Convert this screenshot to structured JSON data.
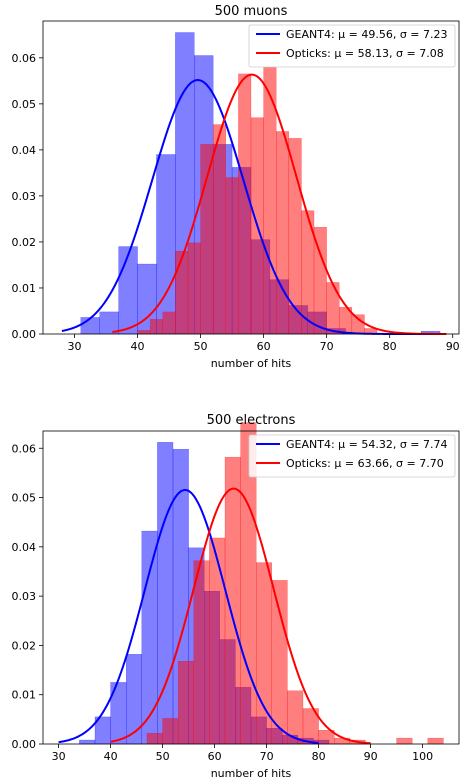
{
  "chart_data": [
    {
      "type": "histogram",
      "title": "500 muons",
      "xlabel": "number of hits",
      "ylabel": "",
      "xlim": [
        25,
        91
      ],
      "ylim": [
        0,
        0.068
      ],
      "xticks": [
        "30",
        "40",
        "50",
        "60",
        "70",
        "80",
        "90"
      ],
      "yticks": [
        "0.00",
        "0.01",
        "0.02",
        "0.03",
        "0.04",
        "0.05",
        "0.06"
      ],
      "xtick_values": [
        30,
        40,
        50,
        60,
        70,
        80,
        90
      ],
      "ytick_values": [
        0,
        0.01,
        0.02,
        0.03,
        0.04,
        0.05,
        0.06
      ],
      "legend_position": "upper right",
      "series": [
        {
          "name": "GEANT4: μ = 49.56, σ = 7.23",
          "color": "#0000ff",
          "mean": 49.56,
          "sigma": 7.23,
          "fit_range": [
            28,
            87
          ],
          "bin_edges": [
            31,
            34,
            37,
            40,
            43,
            46,
            49,
            52,
            55,
            58,
            61,
            64,
            67,
            70,
            73,
            76,
            79,
            82,
            85,
            88
          ],
          "densities": [
            0.0036,
            0.0048,
            0.019,
            0.0152,
            0.039,
            0.0655,
            0.0605,
            0.0412,
            0.0362,
            0.0205,
            0.0118,
            0.0062,
            0.0048,
            0.0012,
            0.0,
            0.0,
            0.0,
            0.0,
            0.0006
          ]
        },
        {
          "name": "Opticks: μ = 58.13, σ = 7.08",
          "color": "#ff0000",
          "mean": 58.13,
          "sigma": 7.08,
          "fit_range": [
            36,
            89
          ],
          "bin_edges": [
            40,
            42,
            44,
            46,
            48,
            50,
            52,
            54,
            56,
            58,
            60,
            62,
            64,
            66,
            68,
            70,
            72,
            74,
            76,
            78
          ],
          "densities": [
            0.0008,
            0.0032,
            0.0048,
            0.018,
            0.0198,
            0.0412,
            0.0455,
            0.034,
            0.0565,
            0.047,
            0.058,
            0.044,
            0.0425,
            0.0268,
            0.0232,
            0.0112,
            0.0058,
            0.0042,
            0.0012
          ]
        }
      ]
    },
    {
      "type": "histogram",
      "title": "500 electrons",
      "xlabel": "number of hits",
      "ylabel": "",
      "xlim": [
        27,
        107
      ],
      "ylim": [
        0,
        0.0635
      ],
      "xticks": [
        "30",
        "40",
        "50",
        "60",
        "70",
        "80",
        "90",
        "100"
      ],
      "yticks": [
        "0.00",
        "0.01",
        "0.02",
        "0.03",
        "0.04",
        "0.05",
        "0.06"
      ],
      "xtick_values": [
        30,
        40,
        50,
        60,
        70,
        80,
        90,
        100
      ],
      "ytick_values": [
        0,
        0.01,
        0.02,
        0.03,
        0.04,
        0.05,
        0.06
      ],
      "legend_position": "upper right",
      "series": [
        {
          "name": "GEANT4: μ = 54.32, σ = 7.74",
          "color": "#0000ff",
          "mean": 54.32,
          "sigma": 7.74,
          "fit_range": [
            30,
            80
          ],
          "bin_edges": [
            34,
            37,
            40,
            43,
            46,
            49,
            52,
            55,
            58,
            61,
            64,
            67,
            70,
            73,
            76,
            79,
            82
          ],
          "densities": [
            0.0008,
            0.0055,
            0.0125,
            0.0182,
            0.0432,
            0.0612,
            0.0598,
            0.0398,
            0.031,
            0.0212,
            0.0115,
            0.0055,
            0.0032,
            0.0018,
            0.0012,
            0.0008
          ]
        },
        {
          "name": "Opticks: μ = 63.66, σ = 7.70",
          "color": "#ff0000",
          "mean": 63.66,
          "sigma": 7.7,
          "fit_range": [
            40,
            90
          ],
          "bin_edges": [
            47,
            50,
            53,
            56,
            59,
            62,
            65,
            68,
            71,
            74,
            77,
            80,
            83,
            86,
            89,
            92,
            95,
            98,
            101,
            104
          ],
          "densities": [
            0.0022,
            0.0052,
            0.0168,
            0.0372,
            0.0418,
            0.0582,
            0.0652,
            0.0368,
            0.0332,
            0.0108,
            0.0072,
            0.0028,
            0.0012,
            0.0008,
            0.0,
            0.0,
            0.0012,
            0.0,
            0.0012
          ]
        }
      ]
    }
  ]
}
